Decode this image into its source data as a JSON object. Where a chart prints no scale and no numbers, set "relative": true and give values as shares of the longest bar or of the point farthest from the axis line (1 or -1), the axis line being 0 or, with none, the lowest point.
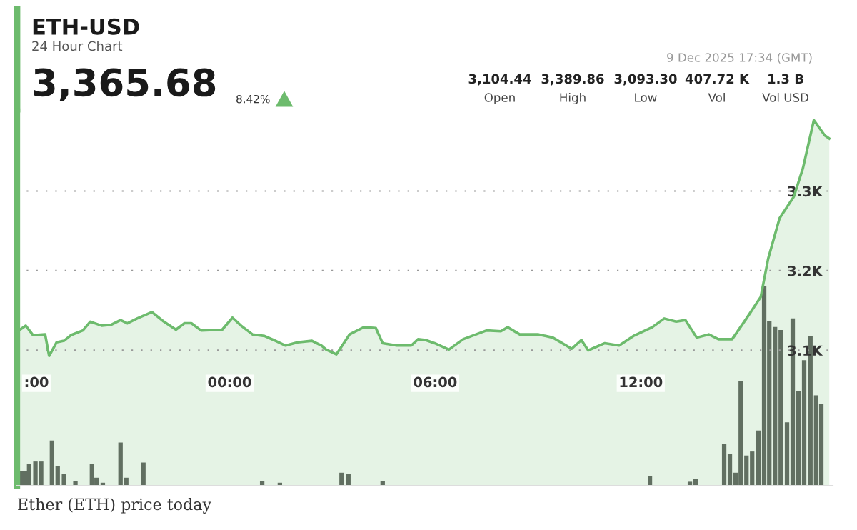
{
  "chart_data": [
    {
      "type": "area",
      "title": "ETH-USD",
      "subtitle": "24 Hour Chart",
      "annotations": [
        "3,365.68",
        "8.42%",
        "3,104.44",
        "3,389.86",
        "3,093.30",
        "407.72 K",
        "1.3 B",
        "Open",
        "High",
        "Low",
        "Vol",
        "Vol USD",
        "9 Dec 2025 17:34 (GMT)",
        "Ether (ETH) price today"
      ],
      "x": [
        "2025-12-08T17:49",
        "2025-12-08T18:03",
        "2025-12-08T18:16",
        "2025-12-08T18:37",
        "2025-12-08T18:44",
        "2025-12-08T18:57",
        "2025-12-08T19:10",
        "2025-12-08T19:22",
        "2025-12-08T19:43",
        "2025-12-08T19:56",
        "2025-12-08T20:16",
        "2025-12-08T20:32",
        "2025-12-08T20:49",
        "2025-12-08T21:01",
        "2025-12-08T21:18",
        "2025-12-08T21:44",
        "2025-12-08T22:03",
        "2025-12-08T22:26",
        "2025-12-08T22:41",
        "2025-12-08T22:53",
        "2025-12-08T23:10",
        "2025-12-08T23:47",
        "2025-12-09T00:05",
        "2025-12-09T00:20",
        "2025-12-09T00:40",
        "2025-12-09T01:01",
        "2025-12-09T01:17",
        "2025-12-09T01:38",
        "2025-12-09T01:59",
        "2025-12-09T02:24",
        "2025-12-09T02:41",
        "2025-12-09T02:49",
        "2025-12-09T03:07",
        "2025-12-09T03:30",
        "2025-12-09T03:55",
        "2025-12-09T04:16",
        "2025-12-09T04:28",
        "2025-12-09T04:53",
        "2025-12-09T05:18",
        "2025-12-09T05:30",
        "2025-12-09T05:43",
        "2025-12-09T05:59",
        "2025-12-09T06:24",
        "2025-12-09T06:49",
        "2025-12-09T07:30",
        "2025-12-09T07:55",
        "2025-12-09T08:07",
        "2025-12-09T08:28",
        "2025-12-09T09:01",
        "2025-12-09T09:26",
        "2025-12-09T09:59",
        "2025-12-09T10:16",
        "2025-12-09T10:28",
        "2025-12-09T10:57",
        "2025-12-09T11:22",
        "2025-12-09T11:47",
        "2025-12-09T12:20",
        "2025-12-09T12:41",
        "2025-12-09T13:02",
        "2025-12-09T13:18",
        "2025-12-09T13:38",
        "2025-12-09T13:59",
        "2025-12-09T14:16",
        "2025-12-09T14:40",
        "2025-12-09T15:05",
        "2025-12-09T15:30",
        "2025-12-09T15:43",
        "2025-12-09T16:03",
        "2025-12-09T16:28",
        "2025-12-09T16:44",
        "2025-12-09T17:03",
        "2025-12-09T17:22",
        "2025-12-09T17:30"
      ],
      "series": [
        {
          "color": "#6dbb6d",
          "values": [
            3124,
            3131,
            3119,
            3120,
            3093,
            3110,
            3112,
            3119,
            3125,
            3136,
            3131,
            3132,
            3138,
            3134,
            3140,
            3148,
            3137,
            3126,
            3134,
            3134,
            3125,
            3126,
            3141,
            3131,
            3120,
            3118,
            3113,
            3106,
            3110,
            3112,
            3106,
            3101,
            3095,
            3120,
            3129,
            3128,
            3109,
            3106,
            3106,
            3114,
            3113,
            3109,
            3101,
            3114,
            3125,
            3124,
            3129,
            3120,
            3120,
            3116,
            3102,
            3113,
            3100,
            3109,
            3106,
            3118,
            3129,
            3140,
            3136,
            3138,
            3116,
            3120,
            3114,
            3114,
            3140,
            3167,
            3215,
            3266,
            3293,
            3329,
            3389,
            3370,
            3366
          ]
        }
      ],
      "xlim": [
        "2025-12-08T17:48",
        "2025-12-09T17:36"
      ],
      "ylim": [
        2930,
        3400
      ],
      "xticks": [
        {
          "value": "2025-12-08T18:00",
          "label": ":00"
        },
        {
          "value": "2025-12-09T00:00",
          "label": "00:00"
        },
        {
          "value": "2025-12-09T06:00",
          "label": "06:00"
        },
        {
          "value": "2025-12-09T12:00",
          "label": "12:00"
        }
      ],
      "yticks": [
        {
          "value": 3100,
          "label": "3.1K"
        },
        {
          "value": 3200,
          "label": "3.2K"
        },
        {
          "value": 3300,
          "label": "3.3K"
        }
      ],
      "grid": "y",
      "marker": "none",
      "line_style": "solid"
    },
    {
      "type": "bar",
      "relative": true,
      "x": [
        "2025-12-08T17:56",
        "2025-12-08T18:03",
        "2025-12-08T18:09",
        "2025-12-08T18:20",
        "2025-12-08T18:30",
        "2025-12-08T18:49",
        "2025-12-08T18:59",
        "2025-12-08T19:10",
        "2025-12-08T19:30",
        "2025-12-08T19:59",
        "2025-12-08T20:07",
        "2025-12-08T20:18",
        "2025-12-08T20:49",
        "2025-12-08T20:59",
        "2025-12-08T21:29",
        "2025-12-09T00:57",
        "2025-12-09T01:28",
        "2025-12-09T03:16",
        "2025-12-09T03:28",
        "2025-12-09T04:28",
        "2025-12-09T12:16",
        "2025-12-09T13:26",
        "2025-12-09T13:36",
        "2025-12-09T14:26",
        "2025-12-09T14:36",
        "2025-12-09T14:46",
        "2025-12-09T14:55",
        "2025-12-09T15:05",
        "2025-12-09T15:15",
        "2025-12-09T15:26",
        "2025-12-09T15:36",
        "2025-12-09T15:45",
        "2025-12-09T15:55",
        "2025-12-09T16:05",
        "2025-12-09T16:16",
        "2025-12-09T16:26",
        "2025-12-09T16:36",
        "2025-12-09T16:46",
        "2025-12-09T16:57",
        "2025-12-09T17:07",
        "2025-12-09T17:16"
      ],
      "xlim": [
        "2025-12-08T17:48",
        "2025-12-09T17:36"
      ],
      "series": [
        {
          "color": "#5f5f5f",
          "values": [
            0.075,
            0.075,
            0.108,
            0.121,
            0.121,
            0.226,
            0.1,
            0.058,
            0.025,
            0.108,
            0.04,
            0.015,
            0.216,
            0.04,
            0.116,
            0.025,
            0.015,
            0.065,
            0.058,
            0.025,
            0.05,
            0.02,
            0.033,
            0.209,
            0.158,
            0.065,
            0.523,
            0.151,
            0.171,
            0.276,
            1,
            0.824,
            0.794,
            0.779,
            0.317,
            0.837,
            0.473,
            0.628,
            0.749,
            0.452,
            0.41
          ]
        }
      ]
    }
  ]
}
